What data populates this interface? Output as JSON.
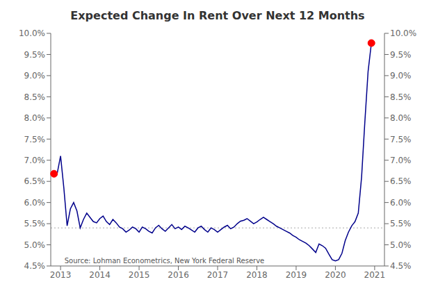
{
  "chart_data": {
    "type": "line",
    "title": "Expected Change In Rent Over Next 12 Months",
    "x": [
      2012.833,
      2012.917,
      2013.0,
      2013.083,
      2013.167,
      2013.25,
      2013.333,
      2013.417,
      2013.5,
      2013.583,
      2013.667,
      2013.75,
      2013.833,
      2013.917,
      2014.0,
      2014.083,
      2014.167,
      2014.25,
      2014.333,
      2014.417,
      2014.5,
      2014.583,
      2014.667,
      2014.75,
      2014.833,
      2014.917,
      2015.0,
      2015.083,
      2015.167,
      2015.25,
      2015.333,
      2015.417,
      2015.5,
      2015.583,
      2015.667,
      2015.75,
      2015.833,
      2015.917,
      2016.0,
      2016.083,
      2016.167,
      2016.25,
      2016.333,
      2016.417,
      2016.5,
      2016.583,
      2016.667,
      2016.75,
      2016.833,
      2016.917,
      2017.0,
      2017.083,
      2017.167,
      2017.25,
      2017.333,
      2017.417,
      2017.5,
      2017.583,
      2017.667,
      2017.75,
      2017.833,
      2017.917,
      2018.0,
      2018.083,
      2018.167,
      2018.25,
      2018.333,
      2018.417,
      2018.5,
      2018.583,
      2018.667,
      2018.75,
      2018.833,
      2018.917,
      2019.0,
      2019.083,
      2019.167,
      2019.25,
      2019.333,
      2019.417,
      2019.5,
      2019.583,
      2019.667,
      2019.75,
      2019.833,
      2019.917,
      2020.0,
      2020.083,
      2020.167,
      2020.25,
      2020.333,
      2020.417,
      2020.5,
      2020.583,
      2020.667,
      2020.75,
      2020.833,
      2020.917
    ],
    "values": [
      6.68,
      6.7,
      7.1,
      6.35,
      5.45,
      5.85,
      6.0,
      5.8,
      5.4,
      5.6,
      5.75,
      5.65,
      5.55,
      5.52,
      5.62,
      5.68,
      5.55,
      5.48,
      5.6,
      5.52,
      5.42,
      5.38,
      5.3,
      5.35,
      5.42,
      5.38,
      5.3,
      5.42,
      5.38,
      5.32,
      5.28,
      5.4,
      5.46,
      5.38,
      5.32,
      5.4,
      5.48,
      5.38,
      5.42,
      5.36,
      5.44,
      5.4,
      5.35,
      5.3,
      5.4,
      5.44,
      5.36,
      5.3,
      5.4,
      5.36,
      5.3,
      5.36,
      5.42,
      5.46,
      5.38,
      5.42,
      5.5,
      5.56,
      5.58,
      5.62,
      5.56,
      5.5,
      5.54,
      5.6,
      5.65,
      5.6,
      5.55,
      5.5,
      5.44,
      5.4,
      5.36,
      5.32,
      5.28,
      5.22,
      5.18,
      5.12,
      5.08,
      5.04,
      4.98,
      4.9,
      4.82,
      5.02,
      4.98,
      4.92,
      4.78,
      4.65,
      4.62,
      4.65,
      4.8,
      5.1,
      5.3,
      5.45,
      5.55,
      5.75,
      6.6,
      7.9,
      9.1,
      9.77
    ],
    "color": "#00008B",
    "xlim": [
      2012.75,
      2021.25
    ],
    "xticks": [
      2013,
      2014,
      2015,
      2016,
      2017,
      2018,
      2019,
      2020,
      2021
    ],
    "ylim": [
      4.5,
      10.0
    ],
    "yticks": [
      {
        "value": 4.5,
        "label": "4.5%"
      },
      {
        "value": 5.0,
        "label": "5.0%"
      },
      {
        "value": 5.5,
        "label": "5.5%"
      },
      {
        "value": 6.0,
        "label": "6.0%"
      },
      {
        "value": 6.5,
        "label": "6.5%"
      },
      {
        "value": 7.0,
        "label": "7.0%"
      },
      {
        "value": 7.5,
        "label": "7.5%"
      },
      {
        "value": 8.0,
        "label": "8.0%"
      },
      {
        "value": 8.5,
        "label": "8.5%"
      },
      {
        "value": 9.0,
        "label": "9.0%"
      },
      {
        "value": 9.5,
        "label": "9.5%"
      },
      {
        "value": 10.0,
        "label": "10.0%"
      }
    ],
    "y2lim": [
      4.5,
      10.0
    ],
    "y2ticks": [
      {
        "value": 4.5,
        "label": "4.5%"
      },
      {
        "value": 5.0,
        "label": "5.0%"
      },
      {
        "value": 5.5,
        "label": "5.5%"
      },
      {
        "value": 6.0,
        "label": "6.0%"
      },
      {
        "value": 6.5,
        "label": "6.5%"
      },
      {
        "value": 7.0,
        "label": "7.0%"
      },
      {
        "value": 7.5,
        "label": "7.5%"
      },
      {
        "value": 8.0,
        "label": "8.0%"
      },
      {
        "value": 8.5,
        "label": "8.5%"
      },
      {
        "value": 9.0,
        "label": "9.0%"
      },
      {
        "value": 9.5,
        "label": "9.5%"
      },
      {
        "value": 10.0,
        "label": "10.0%"
      }
    ],
    "reference_line": {
      "y": 5.4,
      "color": "#AAAAAA",
      "line_style": "dotted"
    },
    "points": {
      "x": [
        2012.833,
        2020.917
      ],
      "y": [
        6.68,
        9.77
      ],
      "color": "#FF0000",
      "marker": "circle"
    },
    "annotations": [
      {
        "text": "Source: Lohman Econometrics, New York Federal Reserve",
        "x": 2013.1,
        "y": 4.53
      }
    ],
    "grid": false
  }
}
